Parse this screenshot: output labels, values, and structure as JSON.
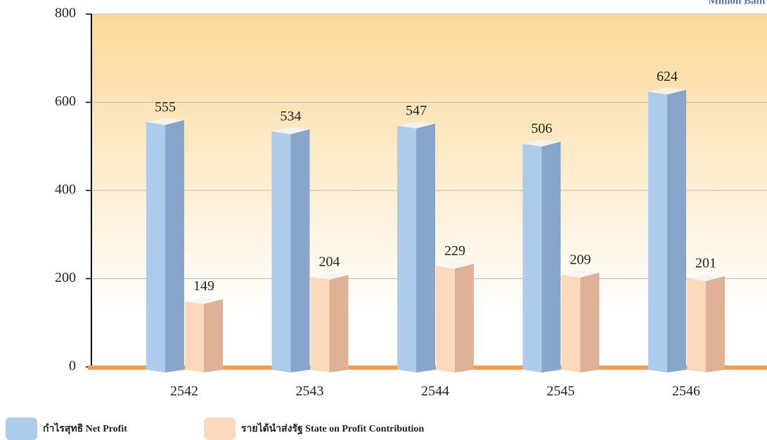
{
  "chart_data": {
    "type": "bar",
    "unit_label": "Million Baht",
    "categories": [
      "2542",
      "2543",
      "2544",
      "2545",
      "2546"
    ],
    "series": [
      {
        "name": "กำไรสุทธิ Net Profit",
        "color": "#aecbeb",
        "values": [
          555,
          534,
          547,
          506,
          624
        ]
      },
      {
        "name": "รายได้นำส่งรัฐ State on Profit Contribution",
        "color": "#fcd9bc",
        "values": [
          149,
          204,
          229,
          209,
          201
        ]
      }
    ],
    "ylim": [
      0,
      800
    ],
    "yticks": [
      0,
      200,
      400,
      600,
      800
    ],
    "grid": true
  }
}
